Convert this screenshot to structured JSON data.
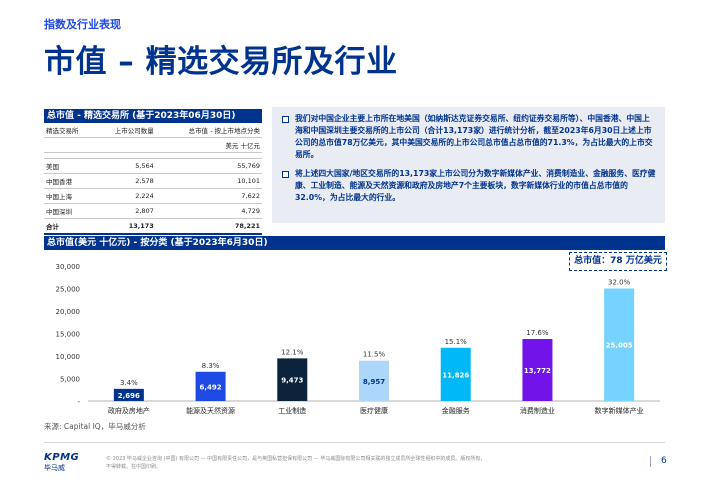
{
  "header": {
    "section": "指数及行业表现",
    "title": "市值 – 精选交易所及行业"
  },
  "table": {
    "title": "总市值 - 精选交易所 (基于2023年06月30日)",
    "col_exchange": "精选交易所",
    "col_count": "上市公司数量",
    "col_cap": "总市值 - 按上市地点分类",
    "unit": "美元 十亿元",
    "rows": [
      {
        "name": "美国",
        "count": "5,564",
        "cap": "55,769"
      },
      {
        "name": "中国香港",
        "count": "2,578",
        "cap": "10,101"
      },
      {
        "name": "中国上海",
        "count": "2,224",
        "cap": "7,622"
      },
      {
        "name": "中国深圳",
        "count": "2,807",
        "cap": "4,729"
      }
    ],
    "total": {
      "name": "合计",
      "count": "13,173",
      "cap": "78,221"
    }
  },
  "info": {
    "bullet1": "我们对中国企业主要上市所在地美国（如纳斯达克证券交易所、纽约证券交易所等）、中国香港、中国上海和中国深圳主要交易所的上市公司（合计13,173家）进行统计分析，截至2023年6月30日上述上市公司的总市值78万亿美元，其中美国交易所的上市公司总市值占总市值的71.3%，为占比最大的上市交易所。",
    "bullet2": "将上述四大国家/地区交易所的13,173家上市公司分为数字新媒体产业、消费制造业、金融服务、医疗健康、工业制造、能源及天然资源和政府及房地产7个主要板块，数字新媒体行业的市值占总市值的32.0%，为占比最大的行业。"
  },
  "chart_header": "总市值(美元 十亿元) - 按分类 (基于2023年6月30日)",
  "total_callout": "总市值：78 万亿美元",
  "chart_data": {
    "type": "bar",
    "categories": [
      "政府及房地产",
      "能源及天然资源",
      "工业制造",
      "医疗健康",
      "金融服务",
      "消费制造业",
      "数字新媒体产业"
    ],
    "values": [
      2696,
      6492,
      9473,
      8957,
      11826,
      13772,
      25005
    ],
    "value_labels": [
      "2,696",
      "6,492",
      "9,473",
      "8,957",
      "11,826",
      "13,772",
      "25,005"
    ],
    "percent_labels": [
      "3.4%",
      "8.3%",
      "12.1%",
      "11.5%",
      "15.1%",
      "17.6%",
      "32.0%"
    ],
    "colors": [
      "#00338d",
      "#1e49e2",
      "#0c233c",
      "#acd7fb",
      "#00b8f5",
      "#7213ea",
      "#76d2ff"
    ],
    "value_label_colors": [
      "#ffffff",
      "#ffffff",
      "#ffffff",
      "#00338d",
      "#ffffff",
      "#ffffff",
      "#ffffff"
    ],
    "yticks": [
      0,
      5000,
      10000,
      15000,
      20000,
      25000,
      30000
    ],
    "ytick_labels": [
      "-",
      "5,000",
      "10,000",
      "15,000",
      "20,000",
      "25,000",
      "30,000"
    ],
    "ylim": [
      0,
      30000
    ],
    "grid": false,
    "xlabel": "",
    "ylabel": ""
  },
  "source": "来源: Capital IQ，毕马威分析",
  "footer": {
    "logo": "KPMG",
    "logo_cn": "毕马威",
    "copyright": "© 2023 毕马威企业咨询 (中国) 有限公司 — 中国有限责任公司，是与英国私营担保有限公司 — 毕马威国际有限公司相关联的独立成员所全球性组织中的成员。版权所有，不得转载。在中国印刷。",
    "page": "6"
  }
}
